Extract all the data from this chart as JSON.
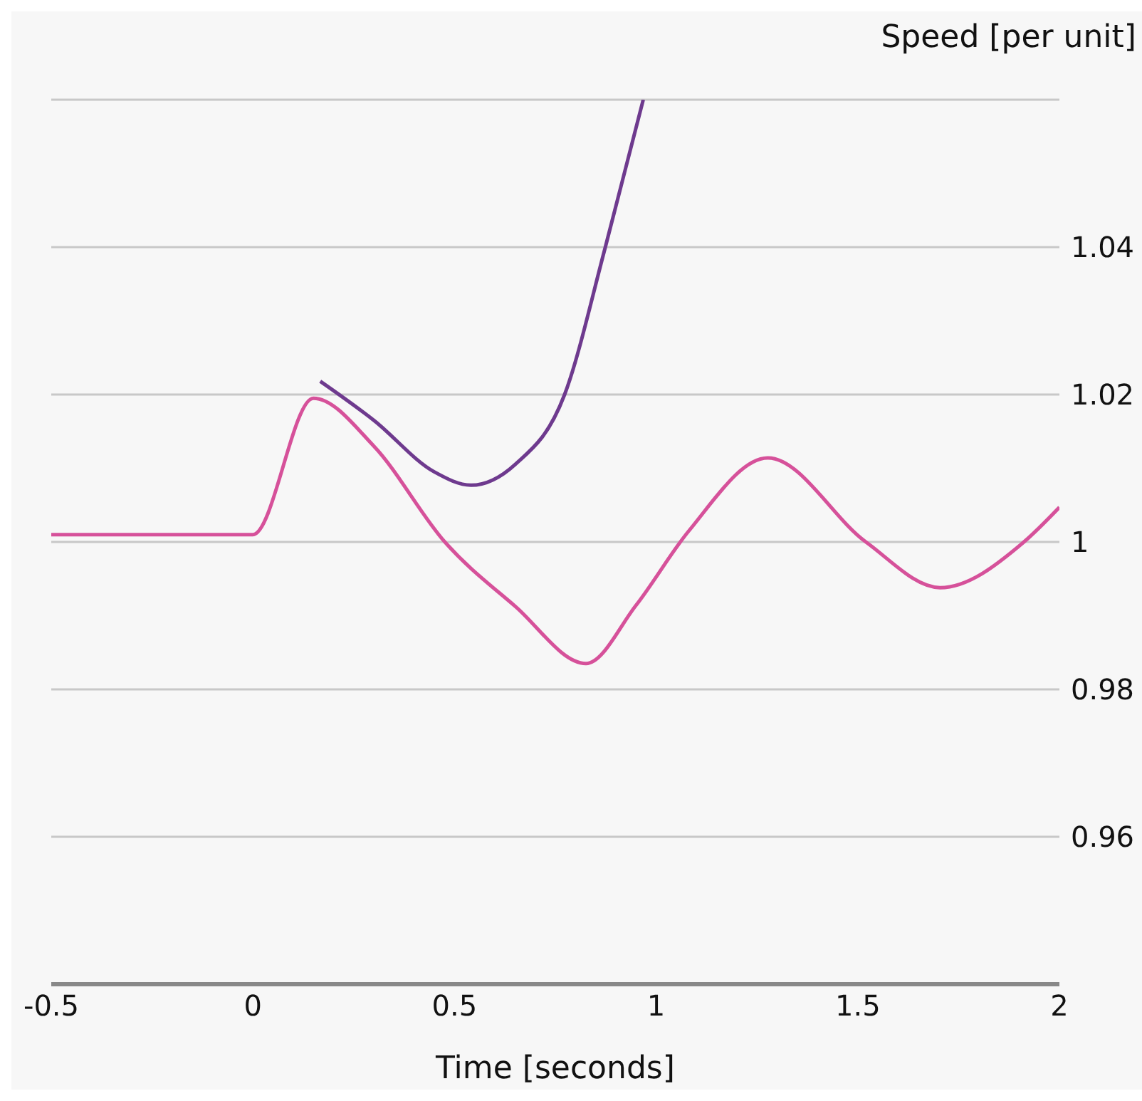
{
  "chart_data": {
    "type": "line",
    "xlabel": "Time [seconds]",
    "ylabel": "Speed [per unit]",
    "xlim": [
      -0.5,
      2
    ],
    "xticks": [
      -0.5,
      0,
      0.5,
      1,
      1.5,
      2
    ],
    "ylim": [
      0.94,
      1.06
    ],
    "yticks": [
      0.96,
      0.98,
      1,
      1.02,
      1.04,
      {
        "value": 1.06,
        "label": null
      }
    ],
    "grid": "y",
    "series": [
      {
        "color": "#d6519a",
        "x": [
          -0.5,
          0,
          0.15,
          0.3,
          0.476,
          0.65,
          0.826,
          0.95,
          1.081,
          1.277,
          1.52,
          1.704,
          1.912,
          2
        ],
        "values": [
          1.001,
          1.001,
          1.0195,
          1.013,
          1,
          0.9913,
          0.9835,
          0.9914,
          1.0015,
          1.0114,
          1,
          0.9938,
          1,
          1.0047
        ]
      },
      {
        "color": "#6e3a8e",
        "x": [
          0.167,
          0.3,
          0.45,
          0.541,
          0.65,
          0.773,
          0.874,
          0.968
        ],
        "values": [
          1.0218,
          1.0165,
          1.0095,
          1.0077,
          1.0105,
          1.02,
          1.04,
          1.06
        ]
      }
    ]
  }
}
